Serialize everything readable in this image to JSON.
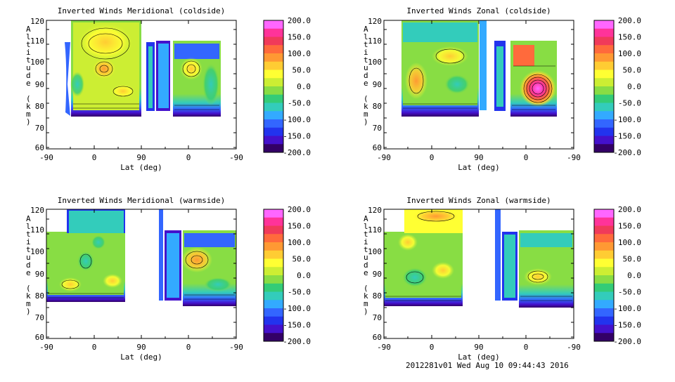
{
  "colorbar": {
    "labels": [
      "200.0",
      "150.0",
      "100.0",
      "50.0",
      "0.0",
      "-50.0",
      "-100.0",
      "-150.0",
      "-200.0"
    ],
    "colors": [
      "#ff66ff",
      "#ff3399",
      "#f03a5a",
      "#ff6a3c",
      "#ff9933",
      "#ffcc33",
      "#ffff33",
      "#ccee33",
      "#88dd44",
      "#33cc77",
      "#33ccbb",
      "#33aaff",
      "#3366ff",
      "#2233ee",
      "#4411cc",
      "#330066"
    ]
  },
  "footer": "2012281v01 Wed Aug 10 09:44:43 2016",
  "chart_data": [
    {
      "type": "heatmap",
      "title": "Inverted Winds Meridional (coldside)",
      "xlabel": "Lat (deg)",
      "ylabel": "Altitude (km)",
      "x_ticks": [
        "-90",
        "0",
        "90",
        "0",
        "-90"
      ],
      "y_ticks": [
        "60",
        "70",
        "80",
        "90",
        "100",
        "110",
        "120"
      ],
      "ylim": [
        58,
        121
      ],
      "zlim": [
        -200,
        200
      ]
    },
    {
      "type": "heatmap",
      "title": "Inverted Winds Zonal (coldside)",
      "xlabel": "Lat (deg)",
      "ylabel": "Altitude (km)",
      "x_ticks": [
        "-90",
        "0",
        "90",
        "0",
        "-90"
      ],
      "y_ticks": [
        "60",
        "70",
        "80",
        "90",
        "100",
        "110",
        "120"
      ],
      "ylim": [
        58,
        121
      ],
      "zlim": [
        -200,
        200
      ]
    },
    {
      "type": "heatmap",
      "title": "Inverted Winds Meridional (warmside)",
      "xlabel": "Lat (deg)",
      "ylabel": "Altitude (km)",
      "x_ticks": [
        "-90",
        "0",
        "90",
        "0",
        "-90"
      ],
      "y_ticks": [
        "60",
        "70",
        "80",
        "90",
        "100",
        "110",
        "120"
      ],
      "ylim": [
        58,
        121
      ],
      "zlim": [
        -200,
        200
      ]
    },
    {
      "type": "heatmap",
      "title": "Inverted Winds Zonal (warmside)",
      "xlabel": "Lat (deg)",
      "ylabel": "Altitude (km)",
      "x_ticks": [
        "-90",
        "0",
        "90",
        "0",
        "-90"
      ],
      "y_ticks": [
        "60",
        "70",
        "80",
        "90",
        "100",
        "110",
        "120"
      ],
      "ylim": [
        58,
        121
      ],
      "zlim": [
        -200,
        200
      ]
    }
  ]
}
